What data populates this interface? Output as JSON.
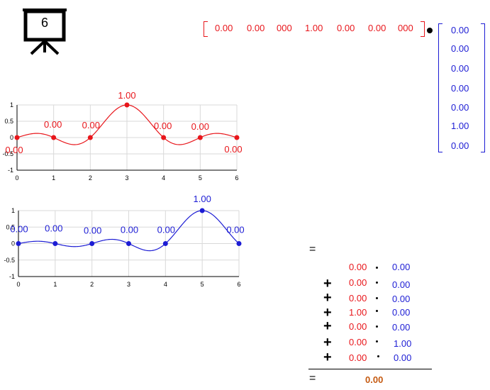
{
  "slide": {
    "number": "6"
  },
  "row_vector": {
    "values": [
      "0.00",
      "0.00",
      "000",
      "1.00",
      "0.00",
      "0.00",
      "000"
    ]
  },
  "column_vector": {
    "values": [
      "0.00",
      "0.00",
      "0.00",
      "0.00",
      "0.00",
      "1.00",
      "0.00"
    ]
  },
  "colors": {
    "red": "#e8161b",
    "blue": "#1c1cd4",
    "result": "#c55a11"
  },
  "chart_data": [
    {
      "type": "line",
      "x": [
        0,
        1,
        2,
        3,
        4,
        5,
        6
      ],
      "values": [
        0,
        0,
        0,
        1,
        0,
        0,
        0
      ],
      "point_labels": [
        "0.00",
        "0.00",
        "0.00",
        "1.00",
        "0.00",
        "0.00",
        "0.00"
      ],
      "xticks": [
        "0",
        "1",
        "2",
        "3",
        "4",
        "5",
        "6"
      ],
      "yticks": [
        "1",
        "0.5",
        "0",
        "-0.5",
        "-1"
      ],
      "xlim": [
        0,
        6
      ],
      "ylim": [
        -1,
        1
      ],
      "grid": true,
      "color": "#e8161b"
    },
    {
      "type": "line",
      "x": [
        0,
        1,
        2,
        3,
        4,
        5,
        6
      ],
      "values": [
        0,
        0,
        0,
        0,
        0,
        1,
        0
      ],
      "point_labels": [
        "0.00",
        "0.00",
        "0.00",
        "0.00",
        "0.00",
        "1.00",
        "0.00"
      ],
      "xticks": [
        "0",
        "1",
        "2",
        "3",
        "4",
        "5",
        "6"
      ],
      "yticks": [
        "1",
        "0.5",
        "0",
        "-0.5",
        "-1"
      ],
      "xlim": [
        0,
        6
      ],
      "ylim": [
        -1,
        1
      ],
      "grid": true,
      "color": "#1c1cd4"
    }
  ],
  "sum": {
    "equals": "=",
    "plus": "+",
    "terms": [
      {
        "a": "0.00",
        "b": "0.00"
      },
      {
        "a": "0.00",
        "b": "0.00"
      },
      {
        "a": "0.00",
        "b": "0.00"
      },
      {
        "a": "1.00",
        "b": "0.00"
      },
      {
        "a": "0.00",
        "b": "0.00"
      },
      {
        "a": "0.00",
        "b": "1.00"
      },
      {
        "a": "0.00",
        "b": "0.00"
      }
    ],
    "result": "0.00"
  }
}
